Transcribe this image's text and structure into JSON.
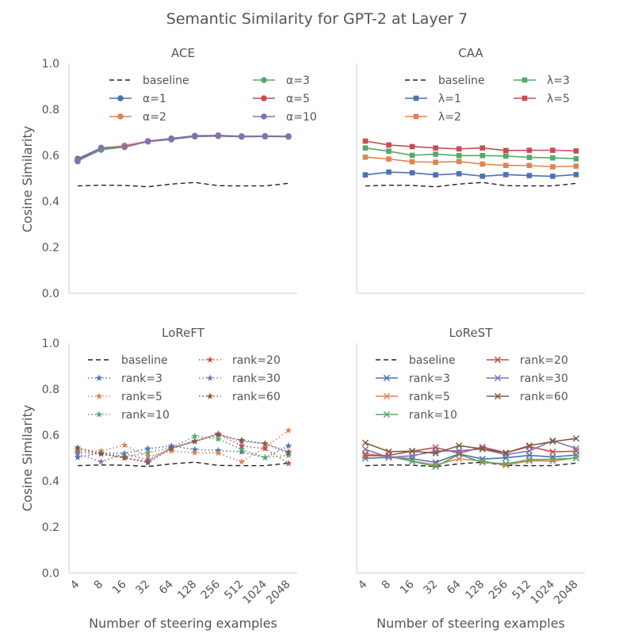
{
  "figure": {
    "title": "Semantic Similarity for GPT-2 at Layer 7",
    "ylabel": "Cosine Similarity",
    "xlabel": "Number of steering examples"
  },
  "chart_data": [
    {
      "type": "line",
      "title": "ACE",
      "x": [
        "4",
        "8",
        "16",
        "32",
        "64",
        "128",
        "256",
        "512",
        "1024",
        "2048"
      ],
      "ylim": [
        0,
        1.0
      ],
      "yticks": [
        "0.0",
        "0.2",
        "0.4",
        "0.6",
        "0.8",
        "1.0"
      ],
      "grid": false,
      "legend": "top",
      "series": [
        {
          "name": "baseline",
          "color": "#222222",
          "style": "dashed",
          "marker": "none",
          "values": [
            0.467,
            0.47,
            0.469,
            0.463,
            0.475,
            0.482,
            0.468,
            0.467,
            0.467,
            0.478
          ]
        },
        {
          "name": "α=1",
          "color": "#4c72b0",
          "style": "solid",
          "marker": "circle",
          "values": [
            0.585,
            0.632,
            0.64,
            0.662,
            0.673,
            0.685,
            0.687,
            0.683,
            0.684,
            0.683
          ]
        },
        {
          "name": "α=2",
          "color": "#dd8452",
          "style": "solid",
          "marker": "circle",
          "values": [
            0.578,
            0.628,
            0.643,
            0.661,
            0.67,
            0.683,
            0.686,
            0.682,
            0.683,
            0.682
          ]
        },
        {
          "name": "α=3",
          "color": "#55a868",
          "style": "solid",
          "marker": "circle",
          "values": [
            0.576,
            0.624,
            0.637,
            0.66,
            0.669,
            0.682,
            0.684,
            0.681,
            0.682,
            0.681
          ]
        },
        {
          "name": "α=5",
          "color": "#c44e52",
          "style": "solid",
          "marker": "circle",
          "values": [
            0.575,
            0.633,
            0.636,
            0.661,
            0.671,
            0.683,
            0.685,
            0.682,
            0.683,
            0.682
          ]
        },
        {
          "name": "α=10",
          "color": "#8172b3",
          "style": "solid",
          "marker": "circle",
          "values": [
            0.574,
            0.632,
            0.636,
            0.66,
            0.67,
            0.682,
            0.684,
            0.681,
            0.682,
            0.681
          ]
        }
      ]
    },
    {
      "type": "line",
      "title": "CAA",
      "x": [
        "4",
        "8",
        "16",
        "32",
        "64",
        "128",
        "256",
        "512",
        "1024",
        "2048"
      ],
      "ylim": [
        0,
        1.0
      ],
      "yticks": [
        "0.0",
        "0.2",
        "0.4",
        "0.6",
        "0.8",
        "1.0"
      ],
      "grid": false,
      "legend": "top",
      "series": [
        {
          "name": "baseline",
          "color": "#222222",
          "style": "dashed",
          "marker": "none",
          "values": [
            0.467,
            0.47,
            0.469,
            0.463,
            0.475,
            0.482,
            0.468,
            0.467,
            0.467,
            0.478
          ]
        },
        {
          "name": "λ=1",
          "color": "#4c72b0",
          "style": "solid",
          "marker": "square",
          "values": [
            0.515,
            0.527,
            0.524,
            0.515,
            0.52,
            0.509,
            0.516,
            0.512,
            0.509,
            0.516
          ]
        },
        {
          "name": "λ=2",
          "color": "#dd8452",
          "style": "solid",
          "marker": "square",
          "values": [
            0.592,
            0.584,
            0.572,
            0.57,
            0.573,
            0.562,
            0.556,
            0.556,
            0.55,
            0.553
          ]
        },
        {
          "name": "λ=3",
          "color": "#55a868",
          "style": "solid",
          "marker": "square",
          "values": [
            0.632,
            0.618,
            0.6,
            0.605,
            0.599,
            0.599,
            0.597,
            0.591,
            0.589,
            0.585
          ]
        },
        {
          "name": "λ=5",
          "color": "#c44e52",
          "style": "solid",
          "marker": "square",
          "values": [
            0.662,
            0.645,
            0.638,
            0.632,
            0.628,
            0.632,
            0.621,
            0.622,
            0.622,
            0.619
          ]
        }
      ]
    },
    {
      "type": "line",
      "title": "LoReFT",
      "x": [
        "4",
        "8",
        "16",
        "32",
        "64",
        "128",
        "256",
        "512",
        "1024",
        "2048"
      ],
      "ylim": [
        0,
        1.0
      ],
      "yticks": [
        "0.0",
        "0.2",
        "0.4",
        "0.6",
        "0.8",
        "1.0"
      ],
      "grid": false,
      "legend": "top",
      "series": [
        {
          "name": "baseline",
          "color": "#222222",
          "style": "dashed",
          "marker": "none",
          "values": [
            0.467,
            0.47,
            0.469,
            0.463,
            0.475,
            0.482,
            0.468,
            0.467,
            0.467,
            0.478
          ]
        },
        {
          "name": "rank=3",
          "color": "#4c72b0",
          "style": "dotted",
          "marker": "star",
          "values": [
            0.503,
            0.522,
            0.52,
            0.541,
            0.553,
            0.537,
            0.533,
            0.527,
            0.502,
            0.553
          ]
        },
        {
          "name": "rank=5",
          "color": "#dd8452",
          "style": "dotted",
          "marker": "star",
          "values": [
            0.535,
            0.531,
            0.556,
            0.507,
            0.531,
            0.523,
            0.522,
            0.484,
            0.546,
            0.62
          ]
        },
        {
          "name": "rank=10",
          "color": "#55a868",
          "style": "dotted",
          "marker": "star",
          "values": [
            0.537,
            0.521,
            0.504,
            0.523,
            0.545,
            0.595,
            0.583,
            0.538,
            0.502,
            0.512
          ]
        },
        {
          "name": "rank=20",
          "color": "#c44e52",
          "style": "dotted",
          "marker": "star",
          "values": [
            0.526,
            0.518,
            0.5,
            0.486,
            0.543,
            0.574,
            0.606,
            0.553,
            0.541,
            0.477
          ]
        },
        {
          "name": "rank=30",
          "color": "#8172b3",
          "style": "dotted",
          "marker": "star",
          "values": [
            0.519,
            0.484,
            0.52,
            0.492,
            0.546,
            0.573,
            0.604,
            0.572,
            0.563,
            0.528
          ]
        },
        {
          "name": "rank=60",
          "color": "#7f5d3f",
          "style": "dotted",
          "marker": "star",
          "values": [
            0.545,
            0.518,
            0.502,
            0.48,
            0.541,
            0.572,
            0.601,
            0.578,
            0.563,
            0.522
          ]
        }
      ]
    },
    {
      "type": "line",
      "title": "LoReST",
      "x": [
        "4",
        "8",
        "16",
        "32",
        "64",
        "128",
        "256",
        "512",
        "1024",
        "2048"
      ],
      "ylim": [
        0,
        1.0
      ],
      "yticks": [
        "0.0",
        "0.2",
        "0.4",
        "0.6",
        "0.8",
        "1.0"
      ],
      "grid": false,
      "legend": "top",
      "series": [
        {
          "name": "baseline",
          "color": "#222222",
          "style": "dashed",
          "marker": "none",
          "values": [
            0.467,
            0.47,
            0.469,
            0.463,
            0.475,
            0.482,
            0.468,
            0.467,
            0.467,
            0.478
          ]
        },
        {
          "name": "rank=3",
          "color": "#4c72b0",
          "style": "solid",
          "marker": "x",
          "values": [
            0.499,
            0.503,
            0.497,
            0.481,
            0.518,
            0.496,
            0.501,
            0.512,
            0.505,
            0.513
          ]
        },
        {
          "name": "rank=5",
          "color": "#dd8452",
          "style": "solid",
          "marker": "x",
          "values": [
            0.519,
            0.509,
            0.487,
            0.47,
            0.497,
            0.487,
            0.469,
            0.488,
            0.487,
            0.501
          ]
        },
        {
          "name": "rank=10",
          "color": "#55a868",
          "style": "solid",
          "marker": "x",
          "values": [
            0.512,
            0.508,
            0.486,
            0.463,
            0.516,
            0.481,
            0.475,
            0.493,
            0.495,
            0.5
          ]
        },
        {
          "name": "rank=20",
          "color": "#c44e52",
          "style": "solid",
          "marker": "x",
          "values": [
            0.51,
            0.512,
            0.53,
            0.546,
            0.521,
            0.548,
            0.523,
            0.55,
            0.527,
            0.53
          ]
        },
        {
          "name": "rank=30",
          "color": "#8172b3",
          "style": "solid",
          "marker": "x",
          "values": [
            0.538,
            0.503,
            0.51,
            0.53,
            0.532,
            0.539,
            0.515,
            0.531,
            0.576,
            0.541
          ]
        },
        {
          "name": "rank=60",
          "color": "#7f5d3f",
          "style": "solid",
          "marker": "x",
          "values": [
            0.566,
            0.528,
            0.53,
            0.521,
            0.554,
            0.54,
            0.523,
            0.554,
            0.572,
            0.585
          ]
        }
      ]
    }
  ]
}
